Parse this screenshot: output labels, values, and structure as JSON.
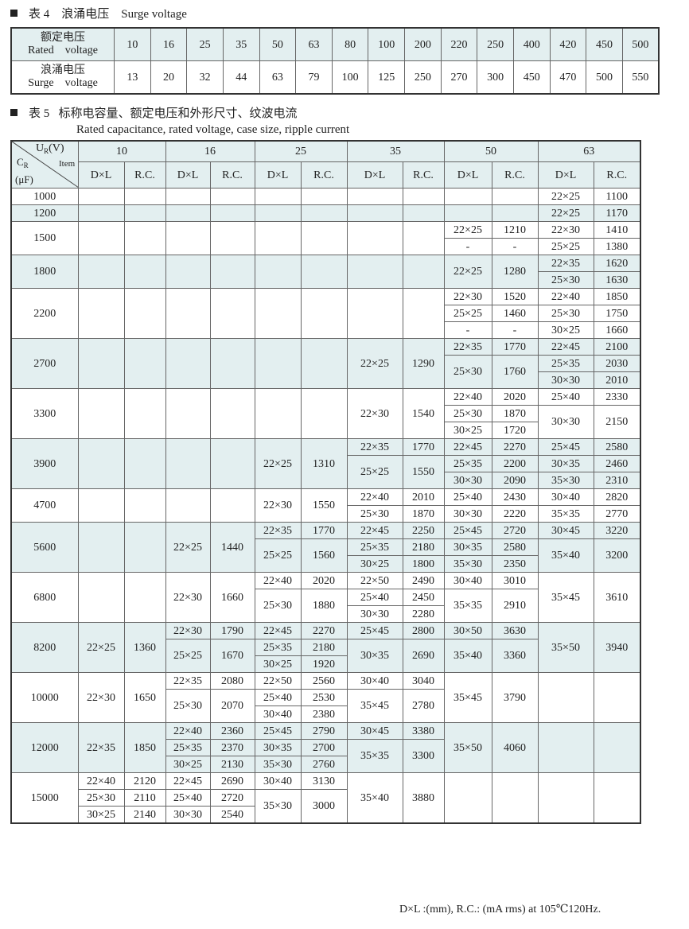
{
  "table4": {
    "caption_num": "表 4",
    "caption_cn": "浪涌电压",
    "caption_en": "Surge voltage",
    "rated_label_cn": "额定电压",
    "rated_label_en": "Rated    voltage",
    "surge_label_cn": "浪涌电压",
    "surge_label_en": "Surge    voltage",
    "rated": [
      "10",
      "16",
      "25",
      "35",
      "50",
      "63",
      "80",
      "100",
      "200",
      "220",
      "250",
      "400",
      "420",
      "450",
      "500"
    ],
    "surge": [
      "13",
      "20",
      "32",
      "44",
      "63",
      "79",
      "100",
      "125",
      "250",
      "270",
      "300",
      "450",
      "470",
      "500",
      "550"
    ]
  },
  "table5": {
    "caption_num": "表 5",
    "caption_cn": "标称电容量、额定电压和外形尺寸、纹波电流",
    "caption_en": "Rated capacitance, rated voltage, case size, ripple current",
    "corner": {
      "ur": "U",
      "ur_sub": "R",
      "ur_unit": "(V)",
      "item": "Item",
      "cr": "C",
      "cr_sub": "R",
      "cr_unit": "(μF)"
    },
    "voltages": [
      "10",
      "16",
      "25",
      "35",
      "50",
      "63"
    ],
    "dl_label": "D×L",
    "rc_label": "R.C.",
    "shade_color": "#e3eff0",
    "groups": [
      {
        "cap": "1000",
        "rows": 1,
        "shaded": false,
        "cols": [
          [],
          [],
          [],
          [],
          [],
          [
            [
              "22×25",
              "1100",
              1
            ]
          ]
        ]
      },
      {
        "cap": "1200",
        "rows": 1,
        "shaded": true,
        "cols": [
          [],
          [],
          [],
          [],
          [],
          [
            [
              "22×25",
              "1170",
              1
            ]
          ]
        ]
      },
      {
        "cap": "1500",
        "rows": 2,
        "shaded": false,
        "cols": [
          [],
          [],
          [],
          [],
          [
            [
              "22×25",
              "1210",
              1
            ],
            [
              "-",
              "-",
              1
            ]
          ],
          [
            [
              "22×30",
              "1410",
              1
            ],
            [
              "25×25",
              "1380",
              1
            ]
          ]
        ]
      },
      {
        "cap": "1800",
        "rows": 2,
        "shaded": true,
        "cols": [
          [],
          [],
          [],
          [],
          [
            [
              "22×25",
              "1280",
              2
            ]
          ],
          [
            [
              "22×35",
              "1620",
              1
            ],
            [
              "25×30",
              "1630",
              1
            ]
          ]
        ]
      },
      {
        "cap": "2200",
        "rows": 3,
        "shaded": false,
        "cols": [
          [],
          [],
          [],
          [],
          [
            [
              "22×30",
              "1520",
              1
            ],
            [
              "25×25",
              "1460",
              1
            ],
            [
              "-",
              "-",
              1
            ]
          ],
          [
            [
              "22×40",
              "1850",
              1
            ],
            [
              "25×30",
              "1750",
              1
            ],
            [
              "30×25",
              "1660",
              1
            ]
          ]
        ]
      },
      {
        "cap": "2700",
        "rows": 3,
        "shaded": true,
        "cols": [
          [],
          [],
          [],
          [
            [
              "22×25",
              "1290",
              3
            ]
          ],
          [
            [
              "22×35",
              "1770",
              1
            ],
            [
              "25×30",
              "1760",
              2
            ]
          ],
          [
            [
              "22×45",
              "2100",
              1
            ],
            [
              "25×35",
              "2030",
              1
            ],
            [
              "30×30",
              "2010",
              1
            ]
          ]
        ]
      },
      {
        "cap": "3300",
        "rows": 3,
        "shaded": false,
        "cols": [
          [],
          [],
          [],
          [
            [
              "22×30",
              "1540",
              3
            ]
          ],
          [
            [
              "22×40",
              "2020",
              1
            ],
            [
              "25×30",
              "1870",
              1
            ],
            [
              "30×25",
              "1720",
              1
            ]
          ],
          [
            [
              "25×40",
              "2330",
              1
            ],
            [
              "30×30",
              "2150",
              2
            ]
          ]
        ]
      },
      {
        "cap": "3900",
        "rows": 3,
        "shaded": true,
        "cols": [
          [],
          [],
          [
            [
              "22×25",
              "1310",
              3
            ]
          ],
          [
            [
              "22×35",
              "1770",
              1
            ],
            [
              "25×25",
              "1550",
              2
            ]
          ],
          [
            [
              "22×45",
              "2270",
              1
            ],
            [
              "25×35",
              "2200",
              1
            ],
            [
              "30×30",
              "2090",
              1
            ]
          ],
          [
            [
              "25×45",
              "2580",
              1
            ],
            [
              "30×35",
              "2460",
              1
            ],
            [
              "35×30",
              "2310",
              1
            ]
          ]
        ]
      },
      {
        "cap": "4700",
        "rows": 2,
        "shaded": false,
        "cols": [
          [],
          [],
          [
            [
              "22×30",
              "1550",
              2
            ]
          ],
          [
            [
              "22×40",
              "2010",
              1
            ],
            [
              "25×30",
              "1870",
              1
            ]
          ],
          [
            [
              "25×40",
              "2430",
              1
            ],
            [
              "30×30",
              "2220",
              1
            ]
          ],
          [
            [
              "30×40",
              "2820",
              1
            ],
            [
              "35×35",
              "2770",
              1
            ]
          ]
        ]
      },
      {
        "cap": "5600",
        "rows": 3,
        "shaded": true,
        "cols": [
          [],
          [
            [
              "22×25",
              "1440",
              3
            ]
          ],
          [
            [
              "22×35",
              "1770",
              1
            ],
            [
              "25×25",
              "1560",
              2
            ]
          ],
          [
            [
              "22×45",
              "2250",
              1
            ],
            [
              "25×35",
              "2180",
              1
            ],
            [
              "30×25",
              "1800",
              1
            ]
          ],
          [
            [
              "25×45",
              "2720",
              1
            ],
            [
              "30×35",
              "2580",
              1
            ],
            [
              "35×30",
              "2350",
              1
            ]
          ],
          [
            [
              "30×45",
              "3220",
              1
            ],
            [
              "35×40",
              "3200",
              2
            ]
          ]
        ]
      },
      {
        "cap": "6800",
        "rows": 3,
        "shaded": false,
        "cols": [
          [],
          [
            [
              "22×30",
              "1660",
              3
            ]
          ],
          [
            [
              "22×40",
              "2020",
              1
            ],
            [
              "25×30",
              "1880",
              2
            ]
          ],
          [
            [
              "22×50",
              "2490",
              1
            ],
            [
              "25×40",
              "2450",
              1
            ],
            [
              "30×30",
              "2280",
              1
            ]
          ],
          [
            [
              "30×40",
              "3010",
              1
            ],
            [
              "35×35",
              "2910",
              2
            ]
          ],
          [
            [
              "35×45",
              "3610",
              3
            ]
          ]
        ]
      },
      {
        "cap": "8200",
        "rows": 3,
        "shaded": true,
        "cols": [
          [
            [
              "22×25",
              "1360",
              3
            ]
          ],
          [
            [
              "22×30",
              "1790",
              1
            ],
            [
              "25×25",
              "1670",
              2
            ]
          ],
          [
            [
              "22×45",
              "2270",
              1
            ],
            [
              "25×35",
              "2180",
              1
            ],
            [
              "30×25",
              "1920",
              1
            ]
          ],
          [
            [
              "25×45",
              "2800",
              1
            ],
            [
              "30×35",
              "2690",
              2
            ]
          ],
          [
            [
              "30×50",
              "3630",
              1
            ],
            [
              "35×40",
              "3360",
              2
            ]
          ],
          [
            [
              "35×50",
              "3940",
              3
            ]
          ]
        ]
      },
      {
        "cap": "10000",
        "rows": 3,
        "shaded": false,
        "cols": [
          [
            [
              "22×30",
              "1650",
              3
            ]
          ],
          [
            [
              "22×35",
              "2080",
              1
            ],
            [
              "25×30",
              "2070",
              2
            ]
          ],
          [
            [
              "22×50",
              "2560",
              1
            ],
            [
              "25×40",
              "2530",
              1
            ],
            [
              "30×40",
              "2380",
              1
            ]
          ],
          [
            [
              "30×40",
              "3040",
              1
            ],
            [
              "35×45",
              "2780",
              2
            ]
          ],
          [
            [
              "35×45",
              "3790",
              3
            ]
          ],
          []
        ]
      },
      {
        "cap": "12000",
        "rows": 3,
        "shaded": true,
        "cols": [
          [
            [
              "22×35",
              "1850",
              3
            ]
          ],
          [
            [
              "22×40",
              "2360",
              1
            ],
            [
              "25×35",
              "2370",
              1
            ],
            [
              "30×25",
              "2130",
              1
            ]
          ],
          [
            [
              "25×45",
              "2790",
              1
            ],
            [
              "30×35",
              "2700",
              1
            ],
            [
              "35×30",
              "2760",
              1
            ]
          ],
          [
            [
              "30×45",
              "3380",
              1
            ],
            [
              "35×35",
              "3300",
              2
            ]
          ],
          [
            [
              "35×50",
              "4060",
              3
            ]
          ],
          []
        ]
      },
      {
        "cap": "15000",
        "rows": 3,
        "shaded": false,
        "cols": [
          [
            [
              "22×40",
              "2120",
              1
            ],
            [
              "25×30",
              "2110",
              1
            ],
            [
              "30×25",
              "2140",
              1
            ]
          ],
          [
            [
              "22×45",
              "2690",
              1
            ],
            [
              "25×40",
              "2720",
              1
            ],
            [
              "30×30",
              "2540",
              1
            ]
          ],
          [
            [
              "30×40",
              "3130",
              1
            ],
            [
              "35×30",
              "3000",
              2
            ]
          ],
          [
            [
              "35×40",
              "3880",
              3
            ]
          ],
          [],
          []
        ]
      }
    ],
    "note": "D×L :(mm), R.C.: (mA rms) at 105℃120Hz."
  }
}
